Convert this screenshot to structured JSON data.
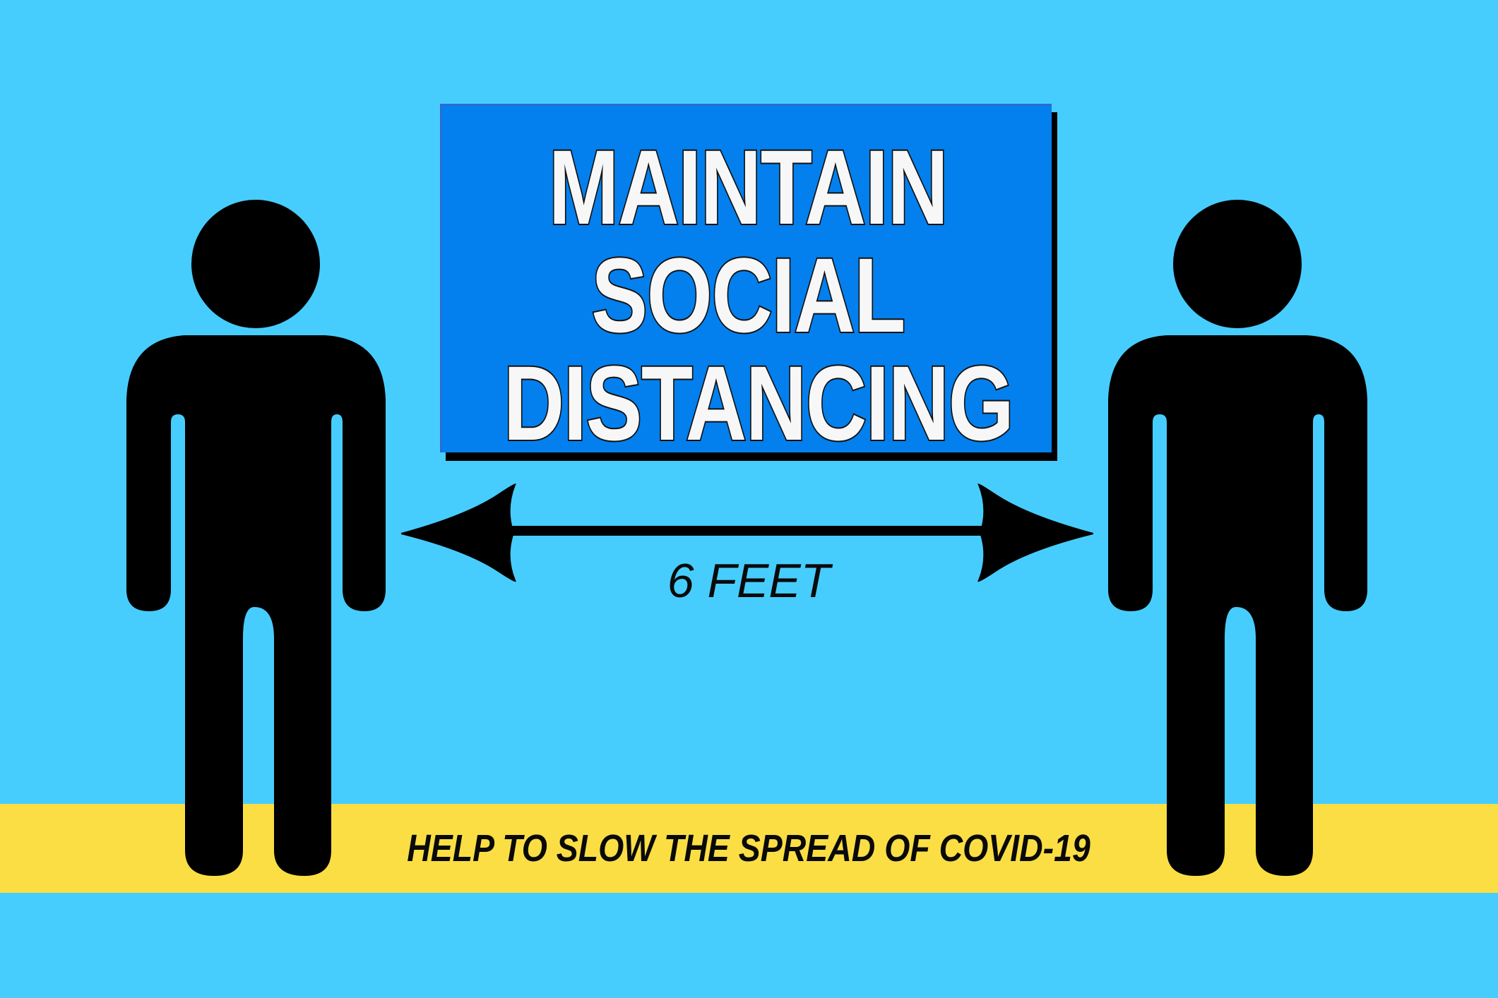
{
  "headline": {
    "line1": "MAINTAIN",
    "line2": "SOCIAL",
    "line3": "DISTANCING"
  },
  "distance": {
    "label": "6 FEET"
  },
  "footer": {
    "message": "HELP TO SLOW THE SPREAD OF COVID-19"
  },
  "colors": {
    "background": "#47cdfd",
    "banner": "#0380ee",
    "band": "#fbde44",
    "figure": "#000000",
    "headline_text": "#f7f7f7"
  },
  "icons": {
    "left_person": "person-icon",
    "right_person": "person-icon",
    "arrow": "double-headed-arrow-icon"
  }
}
